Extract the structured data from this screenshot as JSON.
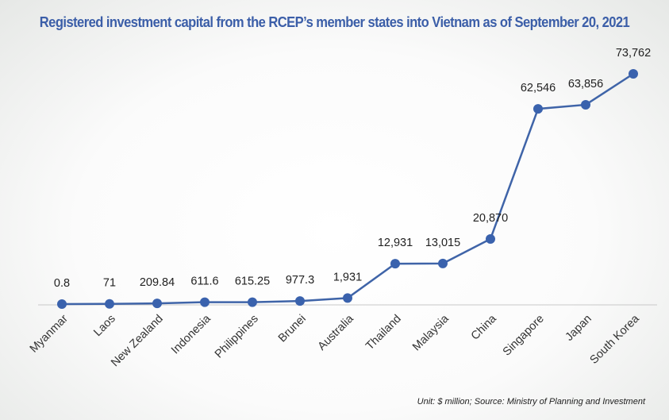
{
  "chart_data": {
    "type": "line",
    "title": "Registered investment capital from the RCEP’s member states into Vietnam as of September 20, 2021",
    "note": "Unit: $ million; Source: Ministry of Planning and Investment",
    "categories": [
      "Myanmar",
      "Laos",
      "New Zealand",
      "Indonesia",
      "Philippines",
      "Brunei",
      "Australia",
      "Thailand",
      "Malaysia",
      "China",
      "Singapore",
      "Japan",
      "South Korea"
    ],
    "values": [
      0.8,
      71,
      209.84,
      611.6,
      615.25,
      977.3,
      1931,
      12931,
      13015,
      20870,
      62546,
      63856,
      73762
    ],
    "labels": [
      "0.8",
      "71",
      "209.84",
      "611.6",
      "615.25",
      "977.3",
      "1,931",
      "12,931",
      "13,015",
      "20,870",
      "62,546",
      "63,856",
      "73,762"
    ],
    "ylim": [
      0,
      73762
    ],
    "grid": false,
    "colors": {
      "line": "#3f64a8",
      "marker": "#3a62ad",
      "title": "#3b5ea8"
    }
  }
}
